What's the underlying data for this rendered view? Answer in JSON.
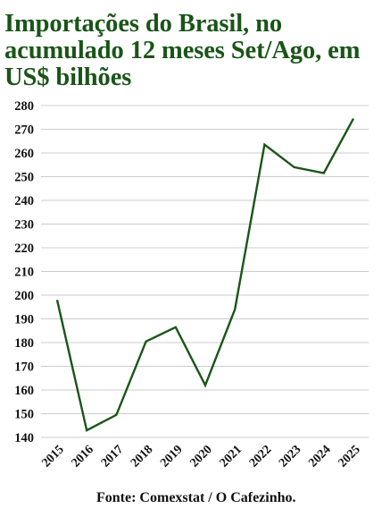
{
  "header": {
    "title": "Importações do Brasil, no acumulado 12 meses Set/Ago, em US$ bilhões"
  },
  "footer": {
    "source": "Fonte: Comexstat / O Cafezinho."
  },
  "colors": {
    "line": "#1a5518",
    "title": "#1a5518",
    "grid": "#cccccc"
  },
  "chart_data": {
    "type": "line",
    "title": "Importações do Brasil, no acumulado 12 meses Set/Ago, em US$ bilhões",
    "xlabel": "",
    "ylabel": "",
    "categories": [
      "2015",
      "2016",
      "2017",
      "2018",
      "2019",
      "2020",
      "2021",
      "2022",
      "2023",
      "2024",
      "2025"
    ],
    "series": [
      {
        "values": [
          198,
          143,
          149.5,
          180.5,
          186.5,
          162,
          194,
          263.5,
          254,
          251.5,
          274.5
        ]
      }
    ],
    "ylim": [
      140,
      280
    ],
    "yticks": [
      140,
      150,
      160,
      170,
      180,
      190,
      200,
      210,
      220,
      230,
      240,
      250,
      260,
      270,
      280
    ],
    "grid": "horizontal",
    "legend": "none"
  }
}
